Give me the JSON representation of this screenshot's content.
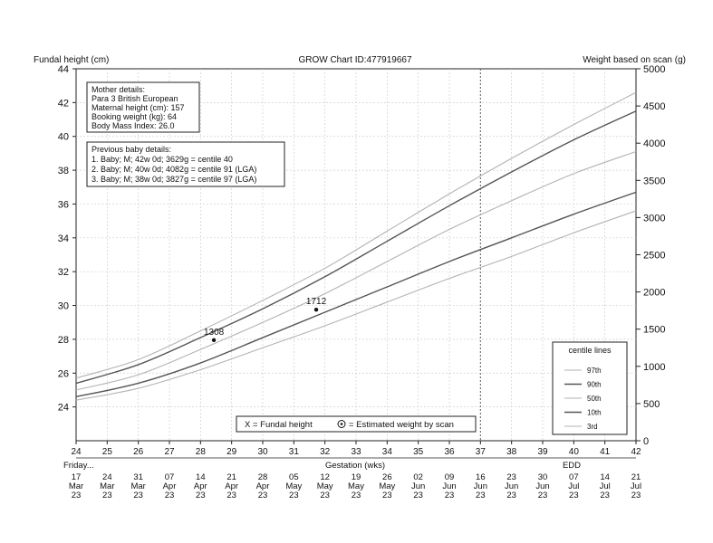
{
  "chart_data": {
    "type": "line",
    "title": "GROW Chart ID:477919667",
    "ylabel_left": "Fundal height (cm)",
    "ylabel_right": "Weight based on scan (g)",
    "xlabel": "Gestation (wks)",
    "xlim": [
      24,
      42
    ],
    "ylim_left": [
      22,
      44
    ],
    "ylim_right": [
      0,
      5000
    ],
    "xticks": [
      24,
      25,
      26,
      27,
      28,
      29,
      30,
      31,
      32,
      33,
      34,
      35,
      36,
      37,
      38,
      39,
      40,
      41,
      42
    ],
    "yticks_left": [
      24,
      26,
      28,
      30,
      32,
      34,
      36,
      38,
      40,
      42,
      44
    ],
    "yticks_right": [
      0,
      500,
      1000,
      1500,
      2000,
      2500,
      3000,
      3500,
      4000,
      4500,
      5000
    ],
    "highlight_week": 37,
    "date_row_label": "Friday...",
    "edd_label": "EDD",
    "dates": [
      {
        "day": "17",
        "month": "Mar",
        "year": "23"
      },
      {
        "day": "24",
        "month": "Mar",
        "year": "23"
      },
      {
        "day": "31",
        "month": "Mar",
        "year": "23"
      },
      {
        "day": "07",
        "month": "Apr",
        "year": "23"
      },
      {
        "day": "14",
        "month": "Apr",
        "year": "23"
      },
      {
        "day": "21",
        "month": "Apr",
        "year": "23"
      },
      {
        "day": "28",
        "month": "Apr",
        "year": "23"
      },
      {
        "day": "05",
        "month": "May",
        "year": "23"
      },
      {
        "day": "12",
        "month": "May",
        "year": "23"
      },
      {
        "day": "19",
        "month": "May",
        "year": "23"
      },
      {
        "day": "26",
        "month": "May",
        "year": "23"
      },
      {
        "day": "02",
        "month": "Jun",
        "year": "23"
      },
      {
        "day": "09",
        "month": "Jun",
        "year": "23"
      },
      {
        "day": "16",
        "month": "Jun",
        "year": "23"
      },
      {
        "day": "23",
        "month": "Jun",
        "year": "23"
      },
      {
        "day": "30",
        "month": "Jun",
        "year": "23"
      },
      {
        "day": "07",
        "month": "Jul",
        "year": "23"
      },
      {
        "day": "14",
        "month": "Jul",
        "year": "23"
      },
      {
        "day": "21",
        "month": "Jul",
        "year": "23"
      }
    ],
    "centiles": [
      {
        "name": "97th",
        "color": "#b3b3b3",
        "x": [
          24,
          26,
          28,
          30,
          32,
          34,
          36,
          38,
          40,
          42
        ],
        "y": [
          25.7,
          26.8,
          28.5,
          30.3,
          32.2,
          34.4,
          36.6,
          38.7,
          40.7,
          42.6
        ]
      },
      {
        "name": "90th",
        "color": "#555555",
        "x": [
          24,
          26,
          28,
          30,
          32,
          34,
          36,
          38,
          40,
          42
        ],
        "y": [
          25.4,
          26.5,
          28.1,
          29.8,
          31.7,
          33.8,
          35.9,
          37.9,
          39.8,
          41.5
        ]
      },
      {
        "name": "50th",
        "color": "#b3b3b3",
        "x": [
          24,
          26,
          28,
          30,
          32,
          34,
          36,
          38,
          40,
          42
        ],
        "y": [
          25.0,
          25.9,
          27.4,
          29.0,
          30.7,
          32.6,
          34.5,
          36.2,
          37.8,
          39.1
        ]
      },
      {
        "name": "10th",
        "color": "#555555",
        "x": [
          24,
          26,
          28,
          30,
          32,
          34,
          36,
          38,
          40,
          42
        ],
        "y": [
          24.6,
          25.4,
          26.6,
          28.1,
          29.6,
          31.1,
          32.6,
          34.0,
          35.4,
          36.7
        ]
      },
      {
        "name": "3rd",
        "color": "#b3b3b3",
        "x": [
          24,
          26,
          28,
          30,
          32,
          34,
          36,
          38,
          40,
          42
        ],
        "y": [
          24.4,
          25.1,
          26.2,
          27.5,
          28.8,
          30.2,
          31.6,
          32.9,
          34.3,
          35.6
        ]
      }
    ],
    "scan_points": [
      {
        "x": 28.43,
        "y": 27.95,
        "label": "1308"
      },
      {
        "x": 31.72,
        "y": 29.75,
        "label": "1712"
      }
    ],
    "mother_details": {
      "heading": "Mother details:",
      "lines": [
        "Para 3  British European",
        "Maternal height (cm): 157",
        "Booking weight (kg): 64",
        "Body Mass Index: 26.0"
      ]
    },
    "previous_baby_details": {
      "heading": "Previous baby details:",
      "lines": [
        "1. Baby; M; 42w 0d; 3629g = centile 40",
        "2. Baby; M; 40w 0d; 4082g = centile 91 (LGA)",
        "3. Baby; M; 38w 0d; 3827g = centile 97 (LGA)"
      ]
    },
    "legend_markers": {
      "fundal": "X = Fundal height",
      "scan": "= Estimated weight by scan"
    },
    "centile_legend_title": "centile lines"
  }
}
